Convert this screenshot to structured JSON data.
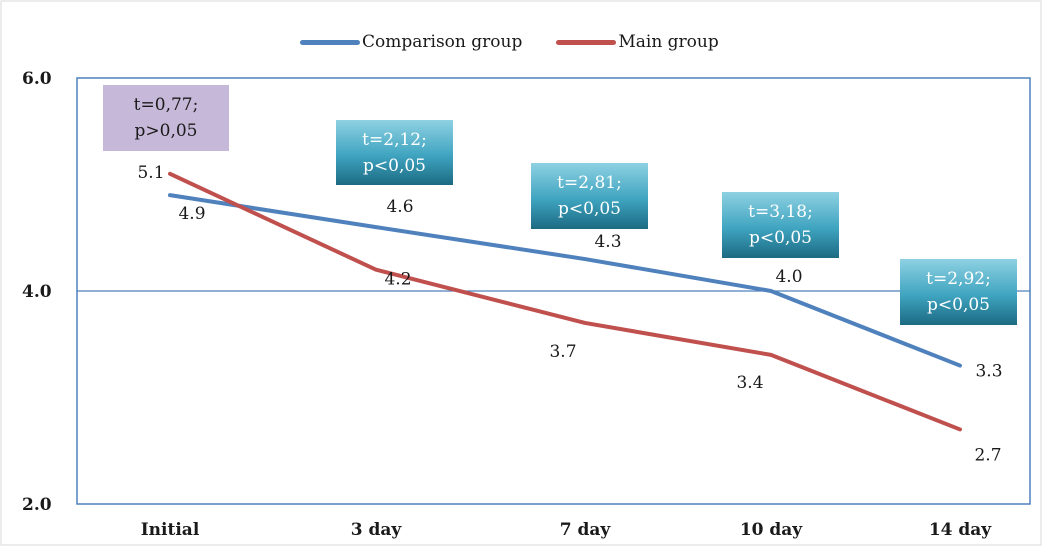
{
  "chart_data": {
    "type": "line",
    "categories": [
      "Initial",
      "3 day",
      "7 day",
      "10 day",
      "14 day"
    ],
    "series": [
      {
        "name": "Comparison group",
        "color": "#4f81bd",
        "values": [
          4.9,
          4.6,
          4.3,
          4.0,
          3.3
        ]
      },
      {
        "name": "Main group",
        "color": "#c0504d",
        "values": [
          5.1,
          4.2,
          3.7,
          3.4,
          2.7
        ]
      }
    ],
    "data_labels": {
      "Comparison group": [
        "4.9",
        "4.6",
        "4.3",
        "4.0",
        "3.3"
      ],
      "Main group": [
        "5.1",
        "4.2",
        "3.7",
        "3.4",
        "2.7"
      ]
    },
    "ylim": [
      2.0,
      6.0
    ],
    "yticks": [
      "2.0",
      "4.0",
      "6.0"
    ],
    "gridlines_y": [
      4.0
    ],
    "legend_position": "top",
    "annotations": [
      {
        "category": "Initial",
        "line1": "t=0,77;",
        "line2": "p>0,05",
        "style": "gray"
      },
      {
        "category": "3 day",
        "line1": "t=2,12;",
        "line2": "p<0,05",
        "style": "teal"
      },
      {
        "category": "7 day",
        "line1": "t=2,81;",
        "line2": "p<0,05",
        "style": "teal"
      },
      {
        "category": "10 day",
        "line1": "t=3,18;",
        "line2": "p<0,05",
        "style": "teal"
      },
      {
        "category": "14 day",
        "line1": "t=2,92;",
        "line2": "p<0,05",
        "style": "teal"
      }
    ]
  }
}
